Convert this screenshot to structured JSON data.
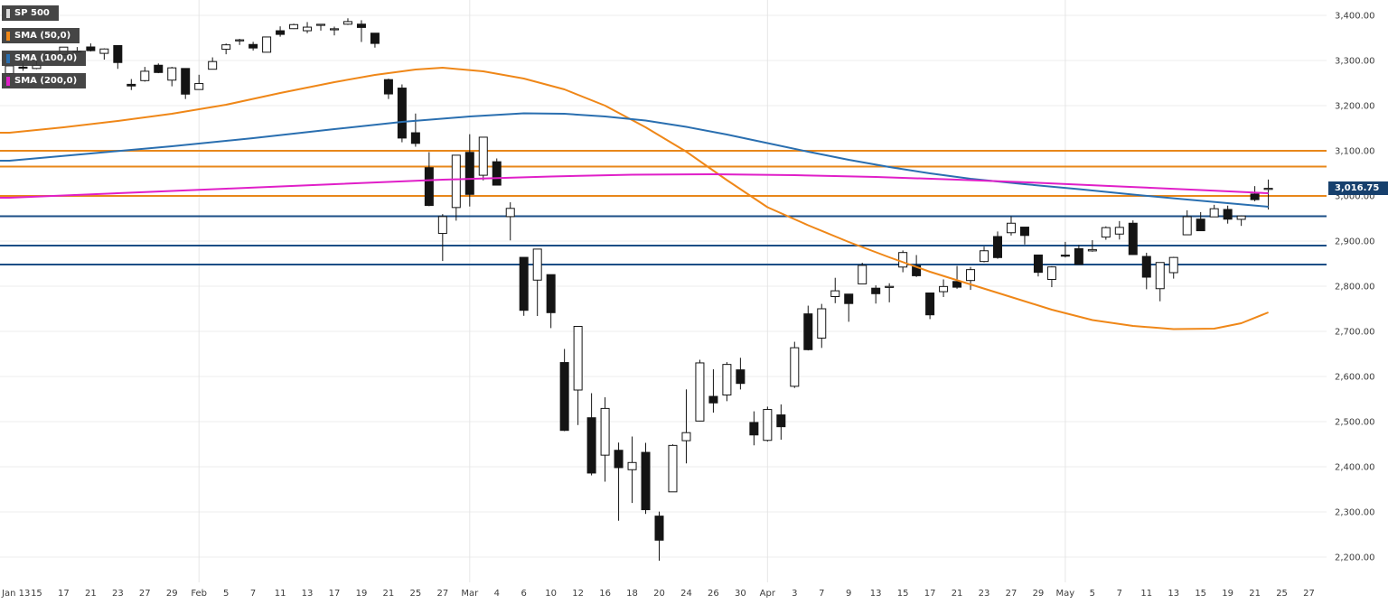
{
  "legend": {
    "items": [
      {
        "label": "SP 500",
        "color": "#d9d9d9"
      },
      {
        "label": "SMA (50,0)",
        "color": "#ef8718"
      },
      {
        "label": "SMA (100,0)",
        "color": "#2a6fb0"
      },
      {
        "label": "SMA (200,0)",
        "color": "#e01fc8"
      }
    ]
  },
  "price_badge": {
    "label": "3,016.75",
    "bg": "#17406d"
  },
  "chart_data": {
    "type": "candlestick",
    "title": "SP 500 daily candlesticks with SMA(50), SMA(100), SMA(200) overlays and horizontal support/resistance lines",
    "symbol": "SP 500",
    "last_price": 3016.75,
    "y_range": [
      2144,
      3434
    ],
    "grid": "horizontal-light",
    "y_ticks": {
      "values": [
        3400,
        3300,
        3200,
        3100,
        3000,
        2900,
        2800,
        2700,
        2600,
        2500,
        2400,
        2300,
        2200
      ],
      "labels": [
        "3,400.00",
        "3,300.00",
        "3,200.00",
        "3,100.00",
        "3,000.00",
        "2,900.00",
        "2,800.00",
        "2,700.00",
        "2,600.00",
        "2,500.00",
        "2,400.00",
        "2,300.00",
        "2,200.00"
      ]
    },
    "x_ticks": [
      "Jan 13",
      "15",
      "17",
      "21",
      "23",
      "27",
      "29",
      "Feb",
      "5",
      "7",
      "11",
      "13",
      "17",
      "19",
      "21",
      "25",
      "27",
      "Mar",
      "4",
      "6",
      "10",
      "12",
      "16",
      "18",
      "20",
      "24",
      "26",
      "30",
      "Apr",
      "3",
      "7",
      "9",
      "13",
      "15",
      "17",
      "21",
      "23",
      "27",
      "29",
      "May",
      "5",
      "7",
      "11",
      "13",
      "15",
      "19",
      "21",
      "25",
      "27"
    ],
    "month_tick_indices": [
      7,
      17,
      28,
      39
    ],
    "levels": [
      {
        "price": 3100,
        "color": "#e8871a"
      },
      {
        "price": 3065,
        "color": "#e8871a"
      },
      {
        "price": 3000,
        "color": "#e8871a"
      },
      {
        "price": 2955,
        "color": "#1b4e86"
      },
      {
        "price": 2890,
        "color": "#1b4e86"
      },
      {
        "price": 2848,
        "color": "#1b4e86"
      }
    ],
    "overlays": [
      {
        "name": "sma-50-line",
        "label": "SMA (50,0)",
        "color": "#ef8718",
        "points": [
          [
            0,
            3140
          ],
          [
            4,
            3152
          ],
          [
            8,
            3166
          ],
          [
            12,
            3182
          ],
          [
            16,
            3202
          ],
          [
            20,
            3228
          ],
          [
            24,
            3252
          ],
          [
            27,
            3268
          ],
          [
            30,
            3280
          ],
          [
            32,
            3284
          ],
          [
            35,
            3276
          ],
          [
            38,
            3260
          ],
          [
            41,
            3236
          ],
          [
            44,
            3200
          ],
          [
            47,
            3152
          ],
          [
            50,
            3098
          ],
          [
            53,
            3035
          ],
          [
            56,
            2975
          ],
          [
            59,
            2935
          ],
          [
            62,
            2898
          ],
          [
            65,
            2864
          ],
          [
            68,
            2832
          ],
          [
            71,
            2804
          ],
          [
            74,
            2776
          ],
          [
            77,
            2748
          ],
          [
            80,
            2725
          ],
          [
            83,
            2712
          ],
          [
            86,
            2705
          ],
          [
            89,
            2706
          ],
          [
            91,
            2718
          ],
          [
            93,
            2742
          ]
        ]
      },
      {
        "name": "sma-100-line",
        "label": "SMA (100,0)",
        "color": "#2a6fb0",
        "points": [
          [
            0,
            3078
          ],
          [
            6,
            3094
          ],
          [
            12,
            3110
          ],
          [
            18,
            3128
          ],
          [
            24,
            3148
          ],
          [
            29,
            3164
          ],
          [
            34,
            3176
          ],
          [
            38,
            3183
          ],
          [
            41,
            3182
          ],
          [
            44,
            3176
          ],
          [
            47,
            3167
          ],
          [
            50,
            3153
          ],
          [
            53,
            3136
          ],
          [
            56,
            3117
          ],
          [
            59,
            3098
          ],
          [
            62,
            3080
          ],
          [
            65,
            3064
          ],
          [
            68,
            3050
          ],
          [
            71,
            3038
          ],
          [
            75,
            3026
          ],
          [
            79,
            3015
          ],
          [
            83,
            3003
          ],
          [
            87,
            2992
          ],
          [
            90,
            2984
          ],
          [
            93,
            2976
          ]
        ]
      },
      {
        "name": "sma-200-line",
        "label": "SMA (200,0)",
        "color": "#e01fc8",
        "points": [
          [
            0,
            2996
          ],
          [
            8,
            3006
          ],
          [
            16,
            3016
          ],
          [
            24,
            3026
          ],
          [
            32,
            3036
          ],
          [
            40,
            3043
          ],
          [
            46,
            3047
          ],
          [
            52,
            3048
          ],
          [
            58,
            3046
          ],
          [
            64,
            3042
          ],
          [
            70,
            3036
          ],
          [
            76,
            3029
          ],
          [
            82,
            3021
          ],
          [
            88,
            3013
          ],
          [
            93,
            3006
          ]
        ]
      }
    ],
    "candles": {
      "dates": [
        "Jan 13",
        "Jan 14",
        "Jan 15",
        "Jan 16",
        "Jan 17",
        "Jan 21",
        "Jan 22",
        "Jan 23",
        "Jan 24",
        "Jan 27",
        "Jan 28",
        "Jan 29",
        "Jan 30",
        "Jan 31",
        "Feb 3",
        "Feb 4",
        "Feb 5",
        "Feb 6",
        "Feb 7",
        "Feb 10",
        "Feb 11",
        "Feb 12",
        "Feb 13",
        "Feb 14",
        "Feb 18",
        "Feb 19",
        "Feb 20",
        "Feb 21",
        "Feb 24",
        "Feb 25",
        "Feb 26",
        "Feb 27",
        "Feb 28",
        "Mar 2",
        "Mar 3",
        "Mar 4",
        "Mar 5",
        "Mar 6",
        "Mar 9",
        "Mar 10",
        "Mar 11",
        "Mar 12",
        "Mar 13",
        "Mar 16",
        "Mar 17",
        "Mar 18",
        "Mar 19",
        "Mar 20",
        "Mar 23",
        "Mar 24",
        "Mar 25",
        "Mar 26",
        "Mar 27",
        "Mar 30",
        "Mar 31",
        "Apr 1",
        "Apr 2",
        "Apr 3",
        "Apr 6",
        "Apr 7",
        "Apr 8",
        "Apr 9",
        "Apr 13",
        "Apr 14",
        "Apr 15",
        "Apr 16",
        "Apr 17",
        "Apr 20",
        "Apr 21",
        "Apr 22",
        "Apr 23",
        "Apr 24",
        "Apr 27",
        "Apr 28",
        "Apr 29",
        "Apr 30",
        "May 1",
        "May 4",
        "May 5",
        "May 6",
        "May 7",
        "May 8",
        "May 11",
        "May 12",
        "May 13",
        "May 14",
        "May 15",
        "May 18",
        "May 19",
        "May 20",
        "May 21",
        "May 22",
        "May 26",
        "May 27"
      ],
      "ohlc": [
        [
          3271.1,
          3288.1,
          3268.4,
          3288.1
        ],
        [
          3285.4,
          3294.3,
          3277.2,
          3283.2
        ],
        [
          3282.3,
          3298.7,
          3280.7,
          3289.3
        ],
        [
          3303.0,
          3317.1,
          3302.8,
          3316.8
        ],
        [
          3313.0,
          3329.9,
          3313.0,
          3329.6
        ],
        [
          3321.0,
          3329.8,
          3316.6,
          3320.8
        ],
        [
          3330.0,
          3337.8,
          3320.0,
          3321.8
        ],
        [
          3315.8,
          3326.9,
          3301.9,
          3325.5
        ],
        [
          3333.1,
          3333.2,
          3281.5,
          3295.5
        ],
        [
          3247.2,
          3258.9,
          3234.5,
          3243.6
        ],
        [
          3255.4,
          3285.8,
          3253.2,
          3276.2
        ],
        [
          3289.5,
          3293.5,
          3271.9,
          3273.4
        ],
        [
          3256.5,
          3285.9,
          3242.8,
          3283.7
        ],
        [
          3282.3,
          3282.3,
          3214.7,
          3225.5
        ],
        [
          3235.7,
          3268.4,
          3235.7,
          3248.9
        ],
        [
          3280.6,
          3306.9,
          3280.6,
          3297.6
        ],
        [
          3324.9,
          3337.6,
          3313.8,
          3334.7
        ],
        [
          3344.9,
          3348.0,
          3334.4,
          3345.8
        ],
        [
          3335.5,
          3341.4,
          3322.1,
          3327.7
        ],
        [
          3318.3,
          3352.3,
          3317.8,
          3352.1
        ],
        [
          3365.9,
          3375.6,
          3352.7,
          3357.8
        ],
        [
          3370.5,
          3381.5,
          3369.7,
          3379.5
        ],
        [
          3365.9,
          3385.1,
          3360.5,
          3373.9
        ],
        [
          3378.1,
          3380.7,
          3366.2,
          3380.2
        ],
        [
          3369.0,
          3375.0,
          3355.6,
          3370.3
        ],
        [
          3380.4,
          3393.5,
          3378.8,
          3386.2
        ],
        [
          3380.5,
          3389.2,
          3341.0,
          3373.2
        ],
        [
          3360.5,
          3360.8,
          3328.5,
          3337.8
        ],
        [
          3257.6,
          3259.8,
          3214.7,
          3225.9
        ],
        [
          3238.9,
          3247.0,
          3118.8,
          3128.2
        ],
        [
          3139.9,
          3182.5,
          3109.0,
          3116.4
        ],
        [
          3062.5,
          3097.1,
          2977.4,
          2978.8
        ],
        [
          2916.9,
          2959.7,
          2855.8,
          2954.2
        ],
        [
          2974.3,
          3090.9,
          2945.2,
          3090.2
        ],
        [
          3096.5,
          3136.7,
          2976.6,
          3003.4
        ],
        [
          3045.8,
          3131.0,
          3034.4,
          3130.1
        ],
        [
          3075.7,
          3083.0,
          3024.4,
          3023.9
        ],
        [
          2954.2,
          2985.9,
          2901.5,
          2972.4
        ],
        [
          2863.9,
          2863.9,
          2734.4,
          2746.6
        ],
        [
          2813.5,
          2882.6,
          2734.0,
          2882.2
        ],
        [
          2825.6,
          2825.6,
          2707.2,
          2741.4
        ],
        [
          2630.9,
          2661.0,
          2478.9,
          2480.6
        ],
        [
          2570.0,
          2711.3,
          2492.4,
          2711.0
        ],
        [
          2508.6,
          2563.0,
          2380.9,
          2386.1
        ],
        [
          2425.7,
          2553.9,
          2367.0,
          2529.2
        ],
        [
          2436.5,
          2453.6,
          2280.5,
          2398.1
        ],
        [
          2393.5,
          2467.0,
          2319.8,
          2409.4
        ],
        [
          2431.9,
          2453.0,
          2295.6,
          2304.9
        ],
        [
          2290.7,
          2300.7,
          2191.9,
          2237.4
        ],
        [
          2344.4,
          2449.7,
          2344.4,
          2447.3
        ],
        [
          2457.8,
          2571.4,
          2407.5,
          2475.6
        ],
        [
          2501.3,
          2637.0,
          2500.7,
          2630.1
        ],
        [
          2555.9,
          2615.9,
          2520.0,
          2541.5
        ],
        [
          2559.0,
          2631.8,
          2545.3,
          2626.7
        ],
        [
          2614.7,
          2641.4,
          2571.2,
          2584.6
        ],
        [
          2498.1,
          2522.8,
          2447.5,
          2470.5
        ],
        [
          2458.5,
          2533.2,
          2455.8,
          2526.9
        ],
        [
          2514.9,
          2538.2,
          2460.0,
          2488.7
        ],
        [
          2578.3,
          2676.9,
          2574.6,
          2663.7
        ],
        [
          2738.7,
          2756.9,
          2657.7,
          2659.4
        ],
        [
          2685.0,
          2760.8,
          2663.3,
          2750.0
        ],
        [
          2777.0,
          2818.6,
          2762.4,
          2789.8
        ],
        [
          2782.5,
          2782.5,
          2721.2,
          2761.6
        ],
        [
          2805.1,
          2851.9,
          2805.1,
          2846.1
        ],
        [
          2795.6,
          2801.9,
          2761.5,
          2783.4
        ],
        [
          2799.3,
          2806.5,
          2764.3,
          2799.6
        ],
        [
          2842.4,
          2879.2,
          2830.9,
          2874.6
        ],
        [
          2845.6,
          2869.0,
          2820.4,
          2823.2
        ],
        [
          2785.0,
          2785.5,
          2727.1,
          2736.6
        ],
        [
          2787.9,
          2815.1,
          2776.0,
          2799.3
        ],
        [
          2810.4,
          2844.9,
          2794.3,
          2797.8
        ],
        [
          2812.6,
          2842.7,
          2791.8,
          2836.7
        ],
        [
          2854.7,
          2887.7,
          2852.9,
          2878.5
        ],
        [
          2910.0,
          2921.2,
          2860.7,
          2863.4
        ],
        [
          2918.5,
          2954.9,
          2912.2,
          2939.5
        ],
        [
          2930.9,
          2930.9,
          2892.5,
          2912.4
        ],
        [
          2869.1,
          2869.1,
          2821.6,
          2830.7
        ],
        [
          2815.0,
          2844.2,
          2797.9,
          2842.7
        ],
        [
          2868.9,
          2898.2,
          2863.7,
          2868.4
        ],
        [
          2883.1,
          2891.1,
          2847.7,
          2848.4
        ],
        [
          2878.2,
          2901.9,
          2876.4,
          2881.2
        ],
        [
          2908.8,
          2932.6,
          2902.9,
          2929.8
        ],
        [
          2915.5,
          2944.3,
          2903.4,
          2930.3
        ],
        [
          2939.5,
          2945.8,
          2869.6,
          2870.1
        ],
        [
          2865.9,
          2874.1,
          2793.2,
          2820.0
        ],
        [
          2794.5,
          2852.8,
          2766.6,
          2852.5
        ],
        [
          2830.0,
          2865.0,
          2816.8,
          2863.7
        ],
        [
          2913.9,
          2968.1,
          2913.9,
          2953.9
        ],
        [
          2948.6,
          2964.2,
          2922.4,
          2922.9
        ],
        [
          2953.6,
          2980.3,
          2953.6,
          2971.6
        ],
        [
          2970.0,
          2978.5,
          2938.6,
          2948.5
        ],
        [
          2948.1,
          2956.8,
          2933.6,
          2955.5
        ],
        [
          3004.1,
          3021.7,
          2988.2,
          2991.8
        ],
        [
          3015.7,
          3036.3,
          2969.8,
          3016.8
        ]
      ]
    }
  }
}
